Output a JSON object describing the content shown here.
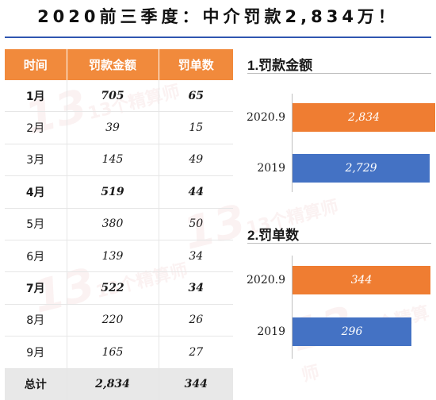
{
  "title": "2020前三季度：中介罚款2,834万！",
  "watermark": "13个精算师",
  "table": {
    "headers": [
      "时间",
      "罚款金额",
      "罚单数"
    ],
    "rows": [
      {
        "month": "1月",
        "amount": "705",
        "count": "65",
        "bold": true
      },
      {
        "month": "2月",
        "amount": "39",
        "count": "15",
        "bold": false
      },
      {
        "month": "3月",
        "amount": "145",
        "count": "49",
        "bold": false
      },
      {
        "month": "4月",
        "amount": "519",
        "count": "44",
        "bold": true
      },
      {
        "month": "5月",
        "amount": "380",
        "count": "50",
        "bold": false
      },
      {
        "month": "6月",
        "amount": "139",
        "count": "34",
        "bold": false
      },
      {
        "month": "7月",
        "amount": "522",
        "count": "34",
        "bold": true
      },
      {
        "month": "8月",
        "amount": "220",
        "count": "26",
        "bold": false
      },
      {
        "month": "9月",
        "amount": "165",
        "count": "27",
        "bold": false
      }
    ],
    "total": {
      "month": "总计",
      "amount": "2,834",
      "count": "344"
    }
  },
  "chart_data": [
    {
      "type": "bar",
      "orientation": "horizontal",
      "title": "1.罚款金额",
      "categories": [
        "2020.9",
        "2019"
      ],
      "values": [
        2834,
        2729
      ],
      "value_labels": [
        "2,834",
        "2,729"
      ],
      "colors": [
        "#ef7d32",
        "#4472c4"
      ],
      "xlim": [
        0,
        3200
      ],
      "grid": false
    },
    {
      "type": "bar",
      "orientation": "horizontal",
      "title": "2.罚单数",
      "categories": [
        "2020.9",
        "2019"
      ],
      "values": [
        344,
        296
      ],
      "value_labels": [
        "344",
        "296"
      ],
      "colors": [
        "#ef7d32",
        "#4472c4"
      ],
      "xlim": [
        0,
        350
      ],
      "grid": false
    }
  ]
}
